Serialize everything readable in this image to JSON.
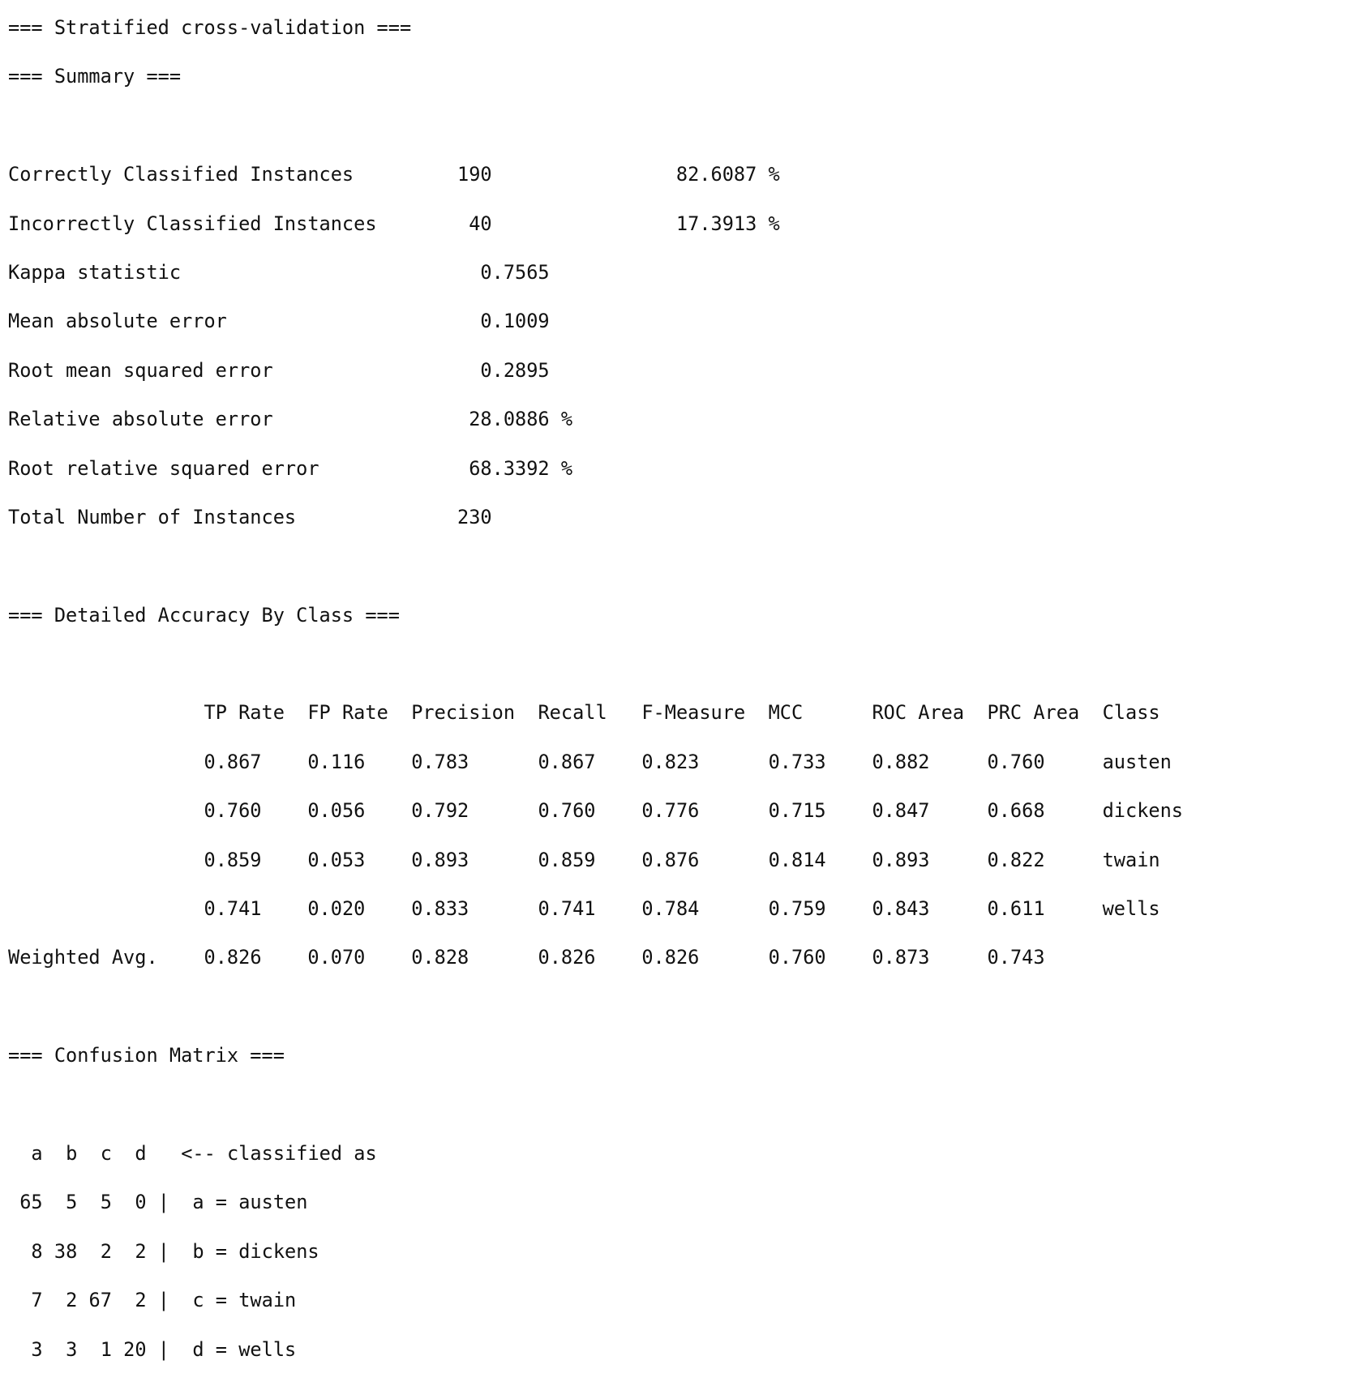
{
  "title": "=== Stratified cross-validation ===",
  "summary": {
    "header": "=== Summary ===",
    "rows": [
      {
        "label": "Correctly Classified Instances",
        "value": "190",
        "percent": "82.6087 %"
      },
      {
        "label": "Incorrectly Classified Instances",
        "value": "40",
        "percent": "17.3913 %"
      },
      {
        "label": "Kappa statistic",
        "value": "0.7565"
      },
      {
        "label": "Mean absolute error",
        "value": "0.1009"
      },
      {
        "label": "Root mean squared error",
        "value": "0.2895"
      },
      {
        "label": "Relative absolute error",
        "value": "28.0886 %"
      },
      {
        "label": "Root relative squared error",
        "value": "68.3392 %"
      },
      {
        "label": "Total Number of Instances",
        "value": "230"
      }
    ]
  },
  "accuracy": {
    "header": "=== Detailed Accuracy By Class ===",
    "columns": [
      "TP Rate",
      "FP Rate",
      "Precision",
      "Recall",
      "F-Measure",
      "MCC",
      "ROC Area",
      "PRC Area",
      "Class"
    ],
    "rows": [
      {
        "label": "",
        "values": [
          "0.867",
          "0.116",
          "0.783",
          "0.867",
          "0.823",
          "0.733",
          "0.882",
          "0.760",
          "austen"
        ]
      },
      {
        "label": "",
        "values": [
          "0.760",
          "0.056",
          "0.792",
          "0.760",
          "0.776",
          "0.715",
          "0.847",
          "0.668",
          "dickens"
        ]
      },
      {
        "label": "",
        "values": [
          "0.859",
          "0.053",
          "0.893",
          "0.859",
          "0.876",
          "0.814",
          "0.893",
          "0.822",
          "twain"
        ]
      },
      {
        "label": "",
        "values": [
          "0.741",
          "0.020",
          "0.833",
          "0.741",
          "0.784",
          "0.759",
          "0.843",
          "0.611",
          "wells"
        ]
      },
      {
        "label": "Weighted Avg.",
        "values": [
          "0.826",
          "0.070",
          "0.828",
          "0.826",
          "0.826",
          "0.760",
          "0.873",
          "0.743",
          ""
        ]
      }
    ]
  },
  "confusion": {
    "header": "=== Confusion Matrix ===",
    "letters": [
      "a",
      "b",
      "c",
      "d"
    ],
    "caption": "<-- classified as",
    "rows": [
      {
        "counts": [
          "65",
          "5",
          "5",
          "0"
        ],
        "assignment": "a = austen"
      },
      {
        "counts": [
          "8",
          "38",
          "2",
          "2"
        ],
        "assignment": "b = dickens"
      },
      {
        "counts": [
          "7",
          "2",
          "67",
          "2"
        ],
        "assignment": "c = twain"
      },
      {
        "counts": [
          "3",
          "3",
          "1",
          "20"
        ],
        "assignment": "d = wells"
      }
    ]
  }
}
